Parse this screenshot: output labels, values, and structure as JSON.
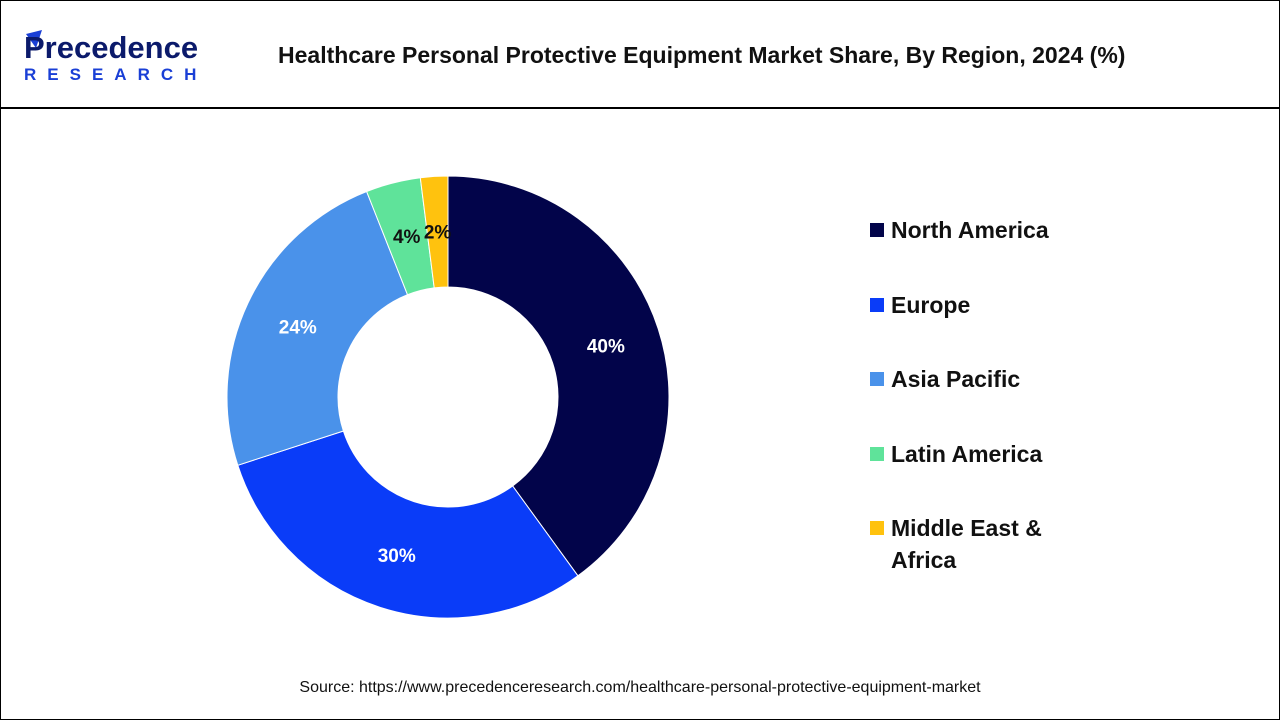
{
  "header": {
    "title": "Healthcare Personal Protective Equipment Market Share, By Region, 2024 (%)",
    "logo_text": "Precedence",
    "logo_subtext": "RESEARCH"
  },
  "chart_data": {
    "type": "pie",
    "donut": true,
    "title": "Healthcare Personal Protective Equipment Market Share, By Region, 2024 (%)",
    "categories": [
      "North America",
      "Europe",
      "Asia Pacific",
      "Latin America",
      "Middle East & Africa"
    ],
    "values": [
      40,
      30,
      24,
      4,
      2
    ],
    "data_labels": [
      "40%",
      "30%",
      "24%",
      "4%",
      "2%"
    ],
    "colors": [
      "#02044a",
      "#0a3cf8",
      "#4a92ea",
      "#5fe39a",
      "#ffc20e"
    ],
    "label_colors": [
      "#ffffff",
      "#ffffff",
      "#ffffff",
      "#111111",
      "#111111"
    ],
    "legend_position": "right"
  },
  "source": "Source: https://www.precedenceresearch.com/healthcare-personal-protective-equipment-market"
}
